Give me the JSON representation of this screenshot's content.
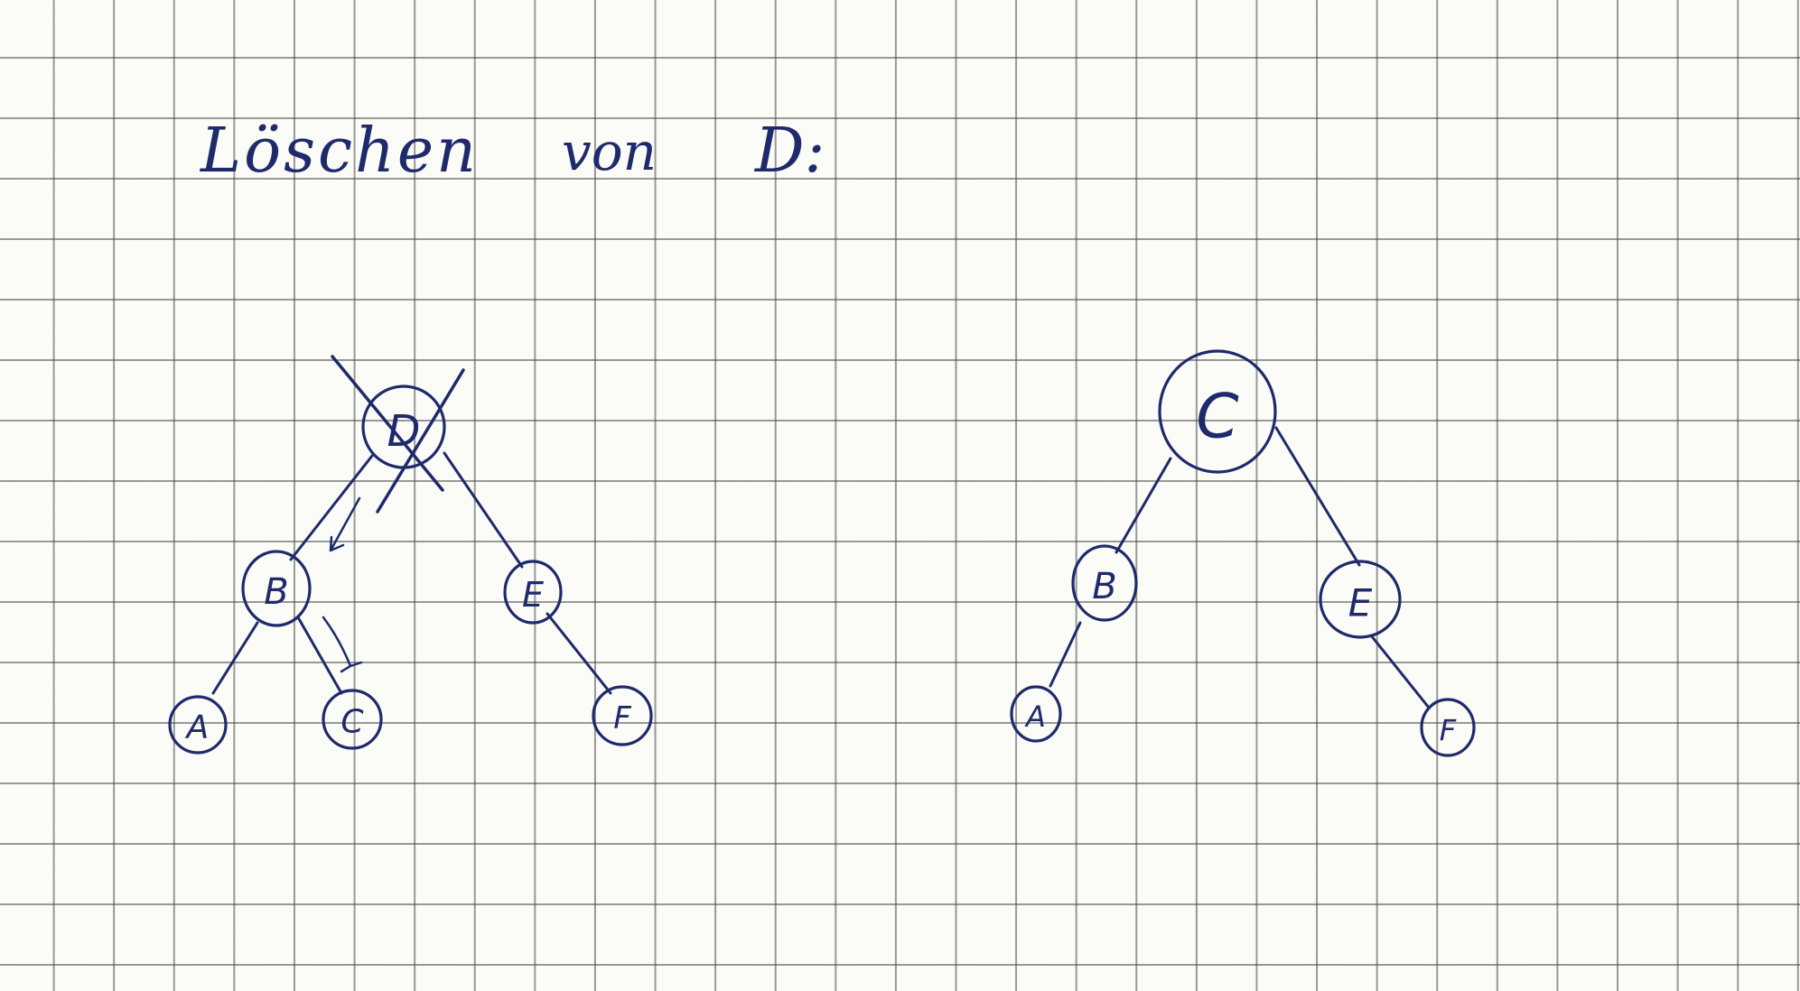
{
  "heading": {
    "word1": "Löschen",
    "word2": "von",
    "word3": "D:"
  },
  "tree_before": {
    "nodes": {
      "D": "D",
      "B": "B",
      "E": "E",
      "A": "A",
      "C": "C",
      "F": "F"
    }
  },
  "tree_after": {
    "nodes": {
      "C": "C",
      "B": "B",
      "E": "E",
      "A": "A",
      "F": "F"
    }
  },
  "colors": {
    "ink": "#1f2a6b",
    "paper": "#fbfbf8",
    "grid": "#464646"
  }
}
